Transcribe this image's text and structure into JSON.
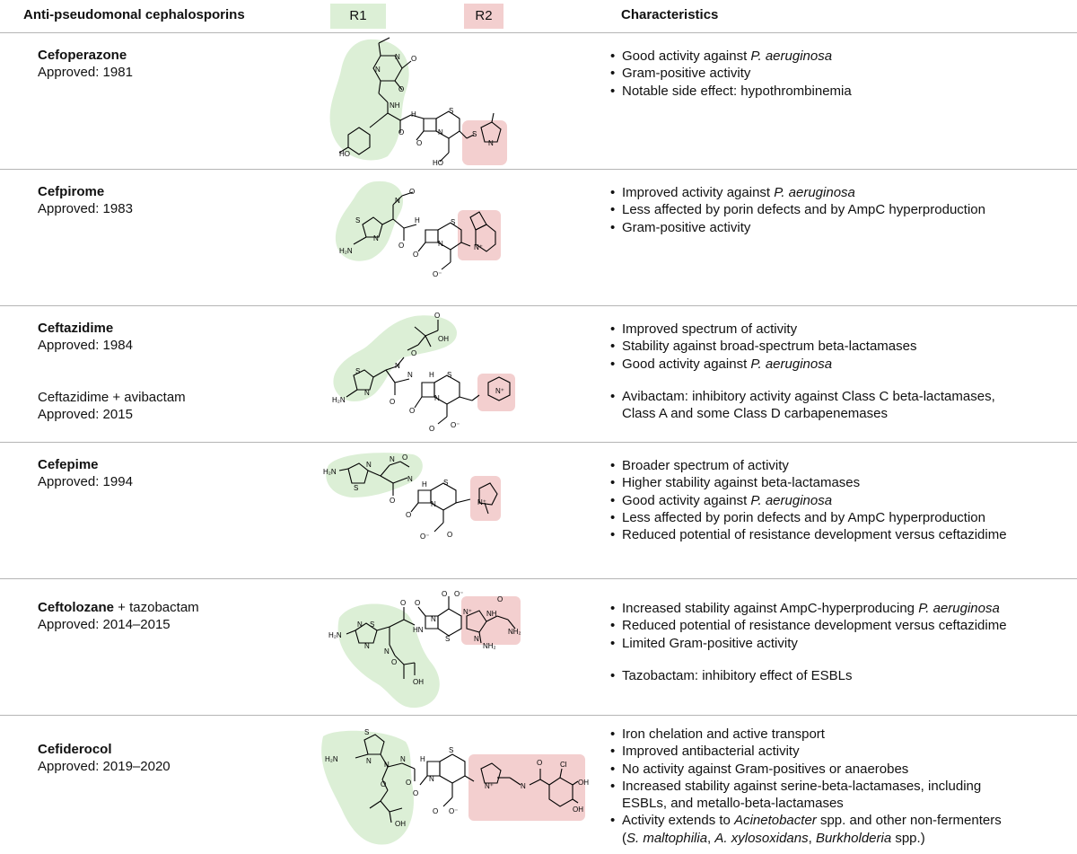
{
  "header": {
    "title": "Anti-pseudomonal cephalosporins",
    "r1": "R1",
    "r2": "R2",
    "characteristics": "Characteristics"
  },
  "colors": {
    "r1_fill": "#dcefd6",
    "r2_fill": "#f3cfcf",
    "rule": "#b5b5b5"
  },
  "rows": [
    {
      "name": "Cefoperazone",
      "approved": "Approved: 1981",
      "bullets": [
        {
          "pre": "Good activity against ",
          "em": "P. aeruginosa",
          "post": ""
        },
        {
          "pre": "Gram-positive activity",
          "em": "",
          "post": ""
        },
        {
          "pre": "Notable side effect: hypothrombinemia",
          "em": "",
          "post": ""
        }
      ]
    },
    {
      "name": "Cefpirome",
      "approved": "Approved: 1983",
      "bullets": [
        {
          "pre": "Improved activity against ",
          "em": "P. aeruginosa",
          "post": ""
        },
        {
          "pre": "Less affected by porin defects and by AmpC hyperproduction",
          "em": "",
          "post": ""
        },
        {
          "pre": "Gram-positive activity",
          "em": "",
          "post": ""
        }
      ]
    },
    {
      "name": "Ceftazidime",
      "approved": "Approved: 1984",
      "combo": "Ceftazidime + avibactam",
      "combo_approved": "Approved: 2015",
      "bullets": [
        {
          "pre": "Improved spectrum of activity",
          "em": "",
          "post": ""
        },
        {
          "pre": "Stability against broad-spectrum beta-lactamases",
          "em": "",
          "post": ""
        },
        {
          "pre": "Good activity against ",
          "em": "P. aeruginosa",
          "post": ""
        },
        {
          "pre": "Avibactam: inhibitory activity against Class C beta-lactamases,",
          "em": "",
          "post": ""
        },
        {
          "pre": "Class A and some Class D carbapenemases",
          "em": "",
          "post": ""
        }
      ]
    },
    {
      "name": "Cefepime",
      "approved": "Approved: 1994",
      "bullets": [
        {
          "pre": "Broader spectrum of activity",
          "em": "",
          "post": ""
        },
        {
          "pre": "Higher stability against beta-lactamases",
          "em": "",
          "post": ""
        },
        {
          "pre": "Good activity against ",
          "em": "P. aeruginosa",
          "post": ""
        },
        {
          "pre": "Less affected by porin defects and by AmpC hyperproduction",
          "em": "",
          "post": ""
        },
        {
          "pre": "Reduced potential of resistance development versus ceftazidime",
          "em": "",
          "post": ""
        }
      ]
    },
    {
      "name": "Ceftolozane",
      "name_suffix": " + tazobactam",
      "approved": "Approved: 2014–2015",
      "bullets": [
        {
          "pre": "Increased stability against AmpC-hyperproducing ",
          "em": "P. aeruginosa",
          "post": ""
        },
        {
          "pre": "Reduced potential of resistance development versus ceftazidime",
          "em": "",
          "post": ""
        },
        {
          "pre": "Limited Gram-positive activity",
          "em": "",
          "post": ""
        },
        {
          "pre": "Tazobactam: inhibitory effect of ESBLs",
          "em": "",
          "post": ""
        }
      ]
    },
    {
      "name": "Cefiderocol",
      "approved": "Approved: 2019–2020",
      "bullets": [
        {
          "pre": "Iron chelation and active transport",
          "em": "",
          "post": ""
        },
        {
          "pre": "Improved antibacterial activity",
          "em": "",
          "post": ""
        },
        {
          "pre": "No activity against Gram-positives or anaerobes",
          "em": "",
          "post": ""
        },
        {
          "pre": "Increased stability against serine-beta-lactamases, including",
          "em": "",
          "post": ""
        },
        {
          "pre": "ESBLs, and metallo-beta-lactamases",
          "em": "",
          "post": ""
        },
        {
          "pre": "Activity extends to ",
          "em": "Acinetobacter",
          "post": " spp. and other non-fermenters"
        },
        {
          "pre": "(",
          "em": "S. maltophilia",
          "post": ", "
        },
        {
          "pre": "",
          "em": "A. xylosoxidans",
          "post": ", "
        },
        {
          "pre": "",
          "em": "Burkholderia",
          "post": " spp.)"
        }
      ]
    }
  ]
}
